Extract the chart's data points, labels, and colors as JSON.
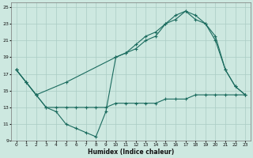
{
  "title": "",
  "xlabel": "Humidex (Indice chaleur)",
  "background_color": "#cde8e0",
  "grid_color": "#aaccC4",
  "line_color": "#1a6b5e",
  "xlim": [
    -0.5,
    23.5
  ],
  "ylim": [
    9,
    25.5
  ],
  "xticks": [
    0,
    1,
    2,
    3,
    4,
    5,
    6,
    7,
    8,
    9,
    10,
    11,
    12,
    13,
    14,
    15,
    16,
    17,
    18,
    19,
    20,
    21,
    22,
    23
  ],
  "yticks": [
    9,
    11,
    13,
    15,
    17,
    19,
    21,
    23,
    25
  ],
  "line1_x": [
    0,
    1,
    2,
    3,
    4,
    5,
    6,
    7,
    8,
    9,
    10,
    11,
    12,
    13,
    14,
    15,
    16,
    17,
    18,
    19,
    20,
    21,
    22,
    23
  ],
  "line1_y": [
    17.5,
    16.0,
    14.5,
    13.0,
    12.5,
    11.0,
    10.5,
    10.0,
    9.5,
    12.5,
    19.0,
    19.5,
    20.0,
    21.0,
    21.5,
    23.0,
    23.5,
    24.5,
    24.0,
    23.0,
    21.0,
    17.5,
    15.5,
    14.5
  ],
  "line2_x": [
    0,
    1,
    2,
    3,
    4,
    5,
    6,
    7,
    8,
    9,
    10,
    11,
    12,
    13,
    14,
    15,
    16,
    17,
    18,
    19,
    20,
    21,
    22,
    23
  ],
  "line2_y": [
    17.5,
    16.0,
    14.5,
    13.0,
    13.0,
    13.0,
    13.0,
    13.0,
    13.0,
    13.0,
    13.5,
    13.5,
    13.5,
    13.5,
    13.5,
    14.0,
    14.0,
    14.0,
    14.5,
    14.5,
    14.5,
    14.5,
    14.5,
    14.5
  ],
  "line3_x": [
    0,
    1,
    2,
    5,
    10,
    11,
    12,
    13,
    14,
    15,
    16,
    17,
    18,
    19,
    20,
    21,
    22,
    23
  ],
  "line3_y": [
    17.5,
    16.0,
    14.5,
    16.0,
    19.0,
    19.5,
    20.5,
    21.5,
    22.0,
    23.0,
    24.0,
    24.5,
    23.5,
    23.0,
    21.5,
    17.5,
    15.5,
    14.5
  ]
}
